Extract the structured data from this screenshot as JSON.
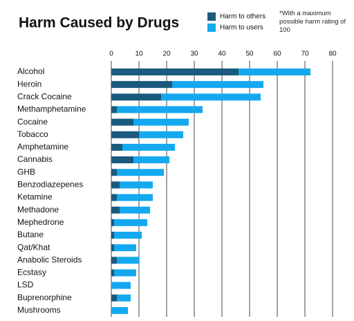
{
  "chart_data": {
    "type": "stacked_barh",
    "title": "Harm Caused by Drugs",
    "annotation": "*With a maximum possible harm rating of 100",
    "categories": [
      "Alcohol",
      "Heroin",
      "Crack Cocaine",
      "Methamphetamine",
      "Cocaine",
      "Tobacco",
      "Amphetamine",
      "Cannabis",
      "GHB",
      "Benzodiazepenes",
      "Ketamine",
      "Methadone",
      "Mephedrone",
      "Butane",
      "Qat/Khat",
      "Anabolic Steroids",
      "Ecstasy",
      "LSD",
      "Buprenorphine",
      "Mushrooms"
    ],
    "series": [
      {
        "name": "Harm to others",
        "color": "#1b5a7d",
        "values": [
          46,
          22,
          18,
          2,
          8,
          10,
          4,
          8,
          2,
          3,
          2,
          3,
          1,
          1,
          1,
          2,
          1,
          0,
          2,
          0
        ]
      },
      {
        "name": "Harm to users",
        "color": "#14a8ef",
        "values": [
          26,
          33,
          36,
          31,
          20,
          16,
          19,
          13,
          17,
          12,
          13,
          11,
          12,
          10,
          8,
          8,
          8,
          7,
          5,
          6
        ]
      }
    ],
    "xlim": [
      0,
      80
    ],
    "xticks": [
      0,
      10,
      20,
      30,
      40,
      50,
      60,
      70,
      80
    ],
    "grid": true
  }
}
